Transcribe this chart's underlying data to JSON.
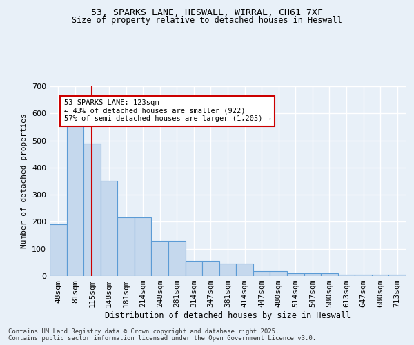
{
  "title1": "53, SPARKS LANE, HESWALL, WIRRAL, CH61 7XF",
  "title2": "Size of property relative to detached houses in Heswall",
  "xlabel": "Distribution of detached houses by size in Heswall",
  "ylabel": "Number of detached properties",
  "categories": [
    "48sqm",
    "81sqm",
    "115sqm",
    "148sqm",
    "181sqm",
    "214sqm",
    "248sqm",
    "281sqm",
    "314sqm",
    "347sqm",
    "381sqm",
    "414sqm",
    "447sqm",
    "480sqm",
    "514sqm",
    "547sqm",
    "580sqm",
    "613sqm",
    "647sqm",
    "680sqm",
    "713sqm"
  ],
  "values": [
    192,
    585,
    488,
    352,
    216,
    216,
    130,
    130,
    57,
    57,
    46,
    46,
    19,
    19,
    11,
    11,
    11,
    5,
    5,
    5,
    5
  ],
  "bar_color": "#c5d8ed",
  "bar_edge_color": "#5b9bd5",
  "background_color": "#e8f0f8",
  "grid_color": "#ffffff",
  "annotation_line1": "53 SPARKS LANE: 123sqm",
  "annotation_line2": "← 43% of detached houses are smaller (922)",
  "annotation_line3": "57% of semi-detached houses are larger (1,205) →",
  "annotation_box_color": "#ffffff",
  "annotation_box_edge": "#cc0000",
  "vline_color": "#cc0000",
  "ylim": [
    0,
    700
  ],
  "yticks": [
    0,
    100,
    200,
    300,
    400,
    500,
    600,
    700
  ],
  "footnote": "Contains HM Land Registry data © Crown copyright and database right 2025.\nContains public sector information licensed under the Open Government Licence v3.0."
}
